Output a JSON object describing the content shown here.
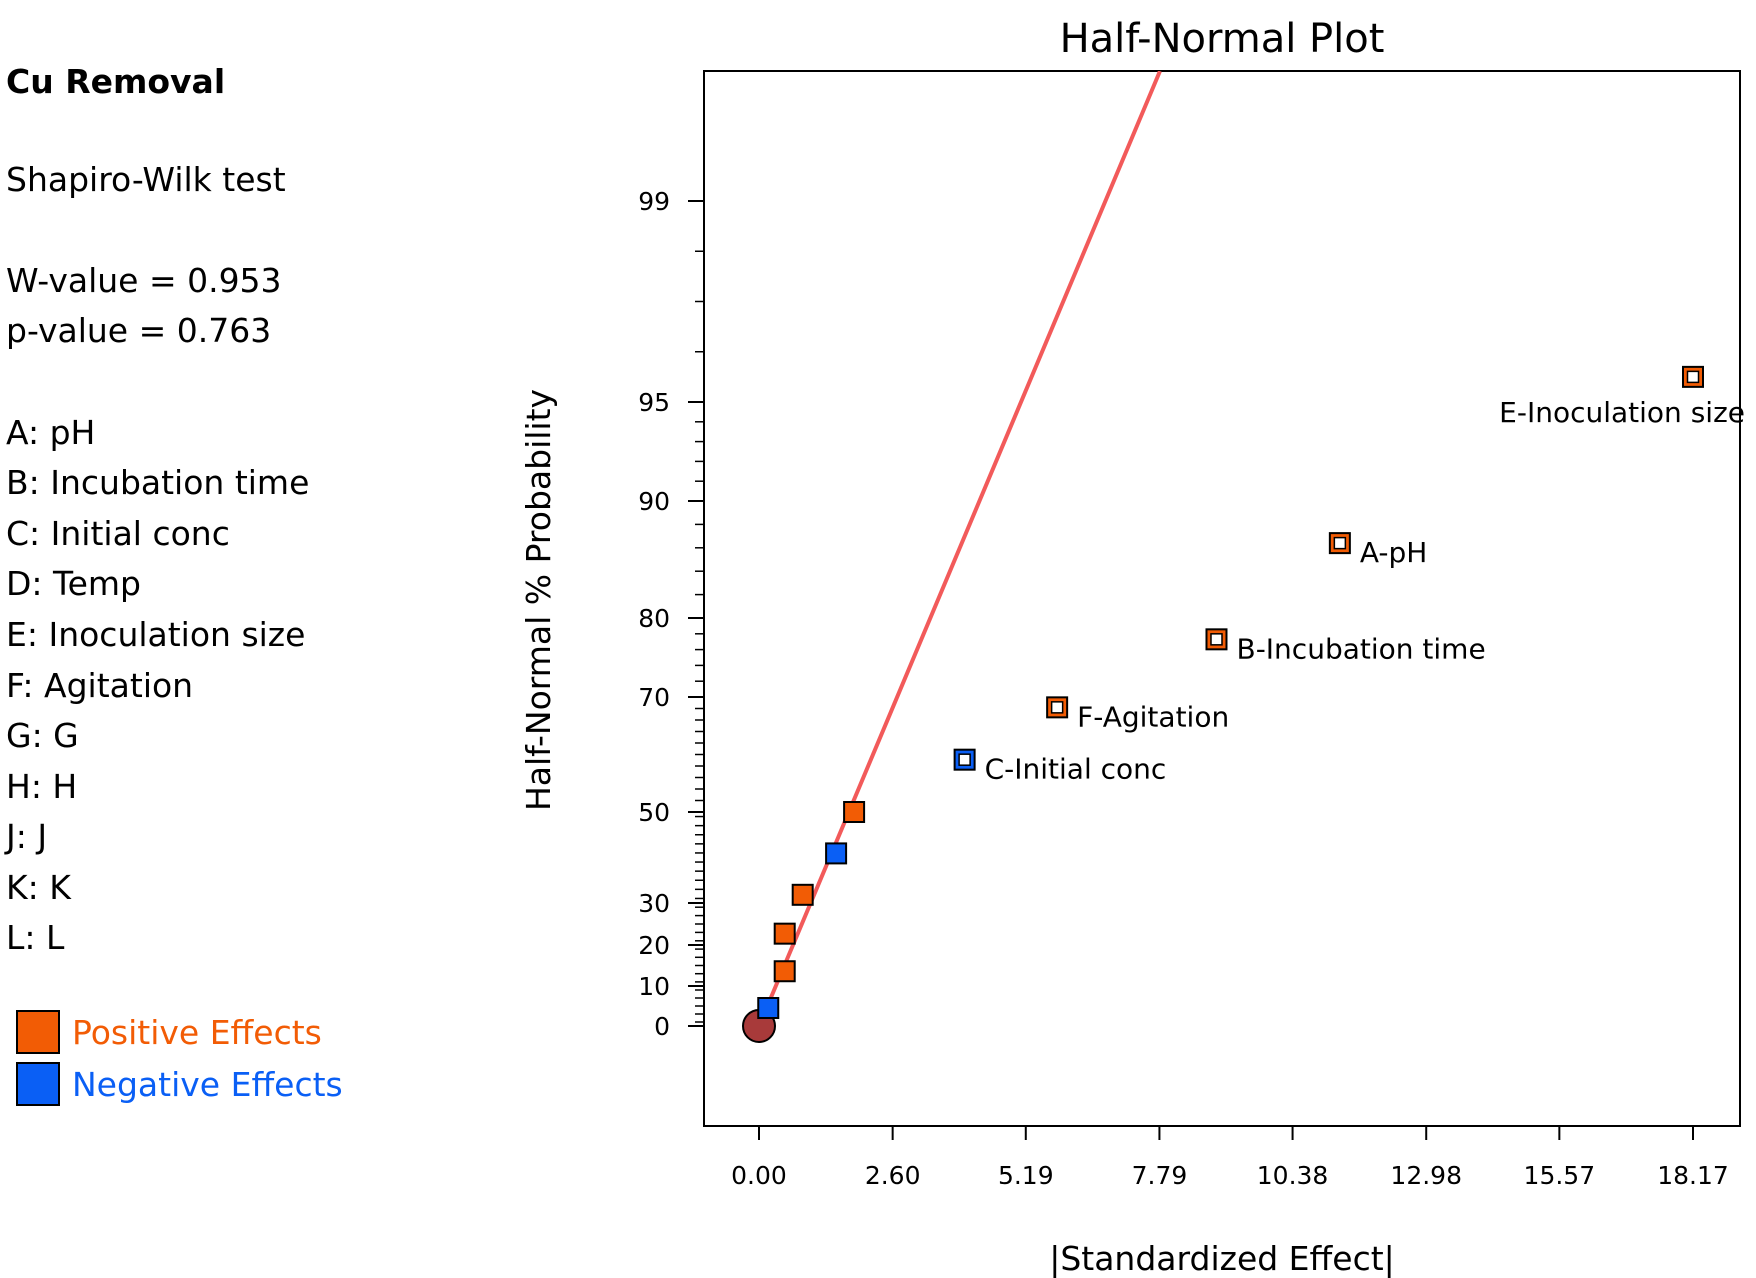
{
  "sidebar": {
    "title": "Cu Removal",
    "test_name": "Shapiro-Wilk test",
    "w_value": "W-value = 0.953",
    "p_value": "p-value = 0.763",
    "factors": [
      "A: pH",
      "B: Incubation time",
      "C: Initial conc",
      "D: Temp",
      "E: Inoculation size",
      "F: Agitation",
      "G: G",
      "H: H",
      "J: J",
      "K: K",
      "L: L"
    ],
    "legend": [
      {
        "label": "Positive Effects",
        "color": "#f25c05"
      },
      {
        "label": "Negative Effects",
        "color": "#0a5ff5"
      }
    ]
  },
  "chart_data": {
    "type": "scatter",
    "title": "Half-Normal Plot",
    "xlabel": "|Standardized Effect|",
    "ylabel": "Half-Normal % Probability",
    "x_ticks": [
      "0.00",
      "2.60",
      "5.19",
      "7.79",
      "10.38",
      "12.98",
      "15.57",
      "18.17"
    ],
    "y_ticks": [
      "0",
      "10",
      "20",
      "30",
      "50",
      "70",
      "80",
      "90",
      "95",
      "99"
    ],
    "xlim": [
      -1.0,
      19.2
    ],
    "ylim": [
      -20,
      99.7
    ],
    "scale": "half-normal probability",
    "reference_line": {
      "color": "#f25a5a",
      "from": [
        0.0,
        0
      ],
      "to": [
        7.8,
        99.9
      ]
    },
    "points": [
      {
        "label": "E-Inoculation size",
        "x": 18.17,
        "y": 95.5,
        "sign": "positive",
        "significant": true
      },
      {
        "label": "A-pH",
        "x": 11.3,
        "y": 86.4,
        "sign": "positive",
        "significant": true
      },
      {
        "label": "B-Incubation time",
        "x": 8.9,
        "y": 77.3,
        "sign": "positive",
        "significant": true
      },
      {
        "label": "F-Agitation",
        "x": 5.8,
        "y": 68.2,
        "sign": "positive",
        "significant": true
      },
      {
        "label": "C-Initial conc",
        "x": 4.0,
        "y": 59.1,
        "sign": "negative",
        "significant": true
      },
      {
        "label": "",
        "x": 1.85,
        "y": 50.0,
        "sign": "positive",
        "significant": false
      },
      {
        "label": "",
        "x": 1.5,
        "y": 40.9,
        "sign": "negative",
        "significant": false
      },
      {
        "label": "",
        "x": 0.85,
        "y": 31.8,
        "sign": "positive",
        "significant": false
      },
      {
        "label": "",
        "x": 0.5,
        "y": 22.7,
        "sign": "positive",
        "significant": false
      },
      {
        "label": "",
        "x": 0.5,
        "y": 13.6,
        "sign": "positive",
        "significant": false
      },
      {
        "label": "",
        "x": 0.18,
        "y": 4.5,
        "sign": "negative",
        "significant": false
      }
    ],
    "origin_marker": {
      "x": 0.0,
      "y": 0,
      "color": "#a83a3a"
    },
    "colors": {
      "positive": "#f25c05",
      "negative": "#0a5ff5",
      "line": "#f25a5a"
    }
  }
}
